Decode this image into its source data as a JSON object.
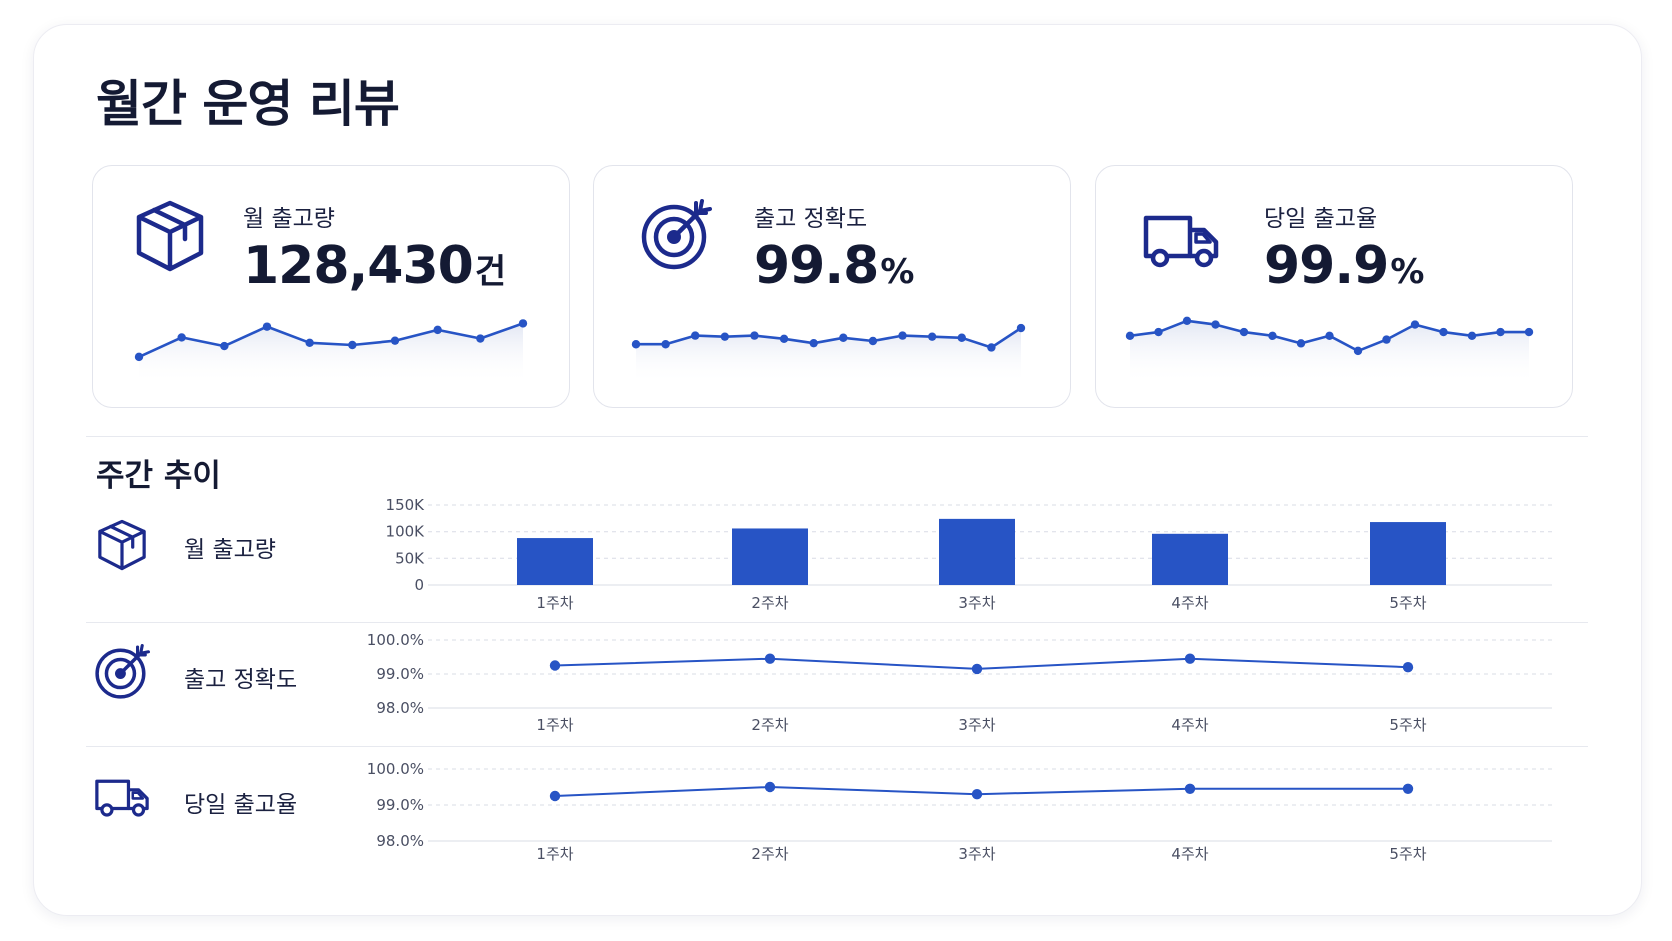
{
  "page": {
    "title": "월간 운영 리뷰"
  },
  "colors": {
    "accent": "#2754c5",
    "navy": "#1c2a8c",
    "text": "#141a33",
    "grid": "#d9dce6"
  },
  "kpis": [
    {
      "label": "월 출고량",
      "value": "128,430",
      "unit": "건",
      "icon": "box-icon"
    },
    {
      "label": "출고 정확도",
      "value": "99.8",
      "unit": "%",
      "icon": "target-icon"
    },
    {
      "label": "당일 출고율",
      "value": "99.9",
      "unit": "%",
      "icon": "truck-icon"
    }
  ],
  "weekly": {
    "title": "주간 추이",
    "rows": [
      {
        "label": "월 출고량",
        "icon": "box-icon"
      },
      {
        "label": "출고 정확도",
        "icon": "target-icon"
      },
      {
        "label": "당일 출고율",
        "icon": "truck-icon"
      }
    ]
  },
  "chart_data": [
    {
      "type": "line",
      "series": [
        {
          "values": [
            14,
            32,
            24,
            42,
            27,
            25,
            29,
            39,
            31,
            45
          ]
        }
      ],
      "ylim": [
        0,
        50
      ]
    },
    {
      "type": "line",
      "series": [
        {
          "values": [
            99.72,
            99.72,
            99.8,
            99.79,
            99.8,
            99.77,
            99.73,
            99.78,
            99.75,
            99.8,
            99.79,
            99.78,
            99.69,
            99.87
          ]
        }
      ],
      "ylim": [
        99.5,
        100.0
      ]
    },
    {
      "type": "line",
      "series": [
        {
          "values": [
            99.86,
            99.87,
            99.9,
            99.89,
            99.87,
            99.86,
            99.84,
            99.86,
            99.82,
            99.85,
            99.89,
            99.87,
            99.86,
            99.87,
            99.87
          ]
        }
      ],
      "ylim": [
        99.7,
        99.95
      ]
    },
    {
      "type": "bar",
      "title": "월 출고량",
      "categories": [
        "1주차",
        "2주차",
        "3주차",
        "4주차",
        "5주차"
      ],
      "values": [
        88000,
        106000,
        124000,
        96000,
        118000
      ],
      "ylim": [
        0,
        150000
      ],
      "yticks": [
        "150K",
        "100K",
        "50K",
        "0"
      ],
      "grid": true
    },
    {
      "type": "line",
      "title": "출고 정확도",
      "categories": [
        "1주차",
        "2주차",
        "3주차",
        "4주차",
        "5주차"
      ],
      "values": [
        99.25,
        99.45,
        99.15,
        99.45,
        99.2
      ],
      "ylim": [
        98.0,
        100.0
      ],
      "yticks": [
        "100.0%",
        "99.0%",
        "98.0%"
      ],
      "grid": true
    },
    {
      "type": "line",
      "title": "당일 출고율",
      "categories": [
        "1주차",
        "2주차",
        "3주차",
        "4주차",
        "5주차"
      ],
      "values": [
        99.25,
        99.5,
        99.3,
        99.45,
        99.45
      ],
      "ylim": [
        98.0,
        100.0
      ],
      "yticks": [
        "100.0%",
        "99.0%",
        "98.0%"
      ],
      "grid": true
    }
  ]
}
